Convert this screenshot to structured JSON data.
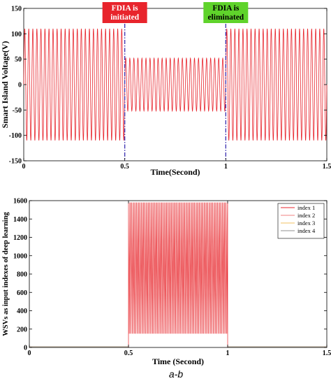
{
  "chart_data": [
    {
      "type": "line",
      "xlabel": "Time(Second)",
      "ylabel": "Smart Island Voltage(V)",
      "xlim": [
        0,
        1.5
      ],
      "ylim": [
        -150,
        150
      ],
      "xticks": [
        "0",
        "0.5",
        "1",
        "1.5"
      ],
      "yticks": [
        "-150",
        "-100",
        "-50",
        "0",
        "50",
        "100",
        "150"
      ],
      "grid": false,
      "series": [
        {
          "color": "#e8242c",
          "waveform": "sine",
          "segments": [
            {
              "x_start": 0,
              "x_end": 0.5,
              "amplitude": 110
            },
            {
              "x_start": 0.5,
              "x_end": 1.0,
              "amplitude": 52
            },
            {
              "x_start": 1.0,
              "x_end": 1.5,
              "amplitude": 110
            }
          ],
          "cycles_per_second": 60
        }
      ],
      "vlines": [
        0.5,
        1.0
      ],
      "annotations": [
        {
          "text_lines": [
            "FDIA is",
            "initiated"
          ],
          "x": 0.5,
          "bg": "#e8242c",
          "fg": "#ffffff"
        },
        {
          "text_lines": [
            "FDIA is",
            "eliminated"
          ],
          "x": 1.0,
          "bg": "#5fd32b",
          "fg": "#000000"
        }
      ]
    },
    {
      "type": "line",
      "xlabel": "Time (Second)",
      "ylabel": "WSVs as input indexes of deep learning",
      "xlim": [
        0,
        1.5
      ],
      "ylim": [
        0,
        1600
      ],
      "xticks": [
        "0",
        "0.5",
        "1",
        "1.5"
      ],
      "yticks": [
        "0",
        "200",
        "400",
        "600",
        "800",
        "1000",
        "1200",
        "1400",
        "1600"
      ],
      "grid": false,
      "legend_position": "top-right",
      "series": [
        {
          "name": "index 1",
          "color": "#e8242c"
        },
        {
          "name": "index 2",
          "color": "#f08080"
        },
        {
          "name": "index 3",
          "color": "#f0c060"
        },
        {
          "name": "index 4",
          "color": "#909090"
        }
      ],
      "active_window": [
        0.5,
        1.0
      ],
      "oscillation_range": [
        150,
        1580
      ],
      "oscillation_cycles": 60
    }
  ],
  "caption": "a-b"
}
